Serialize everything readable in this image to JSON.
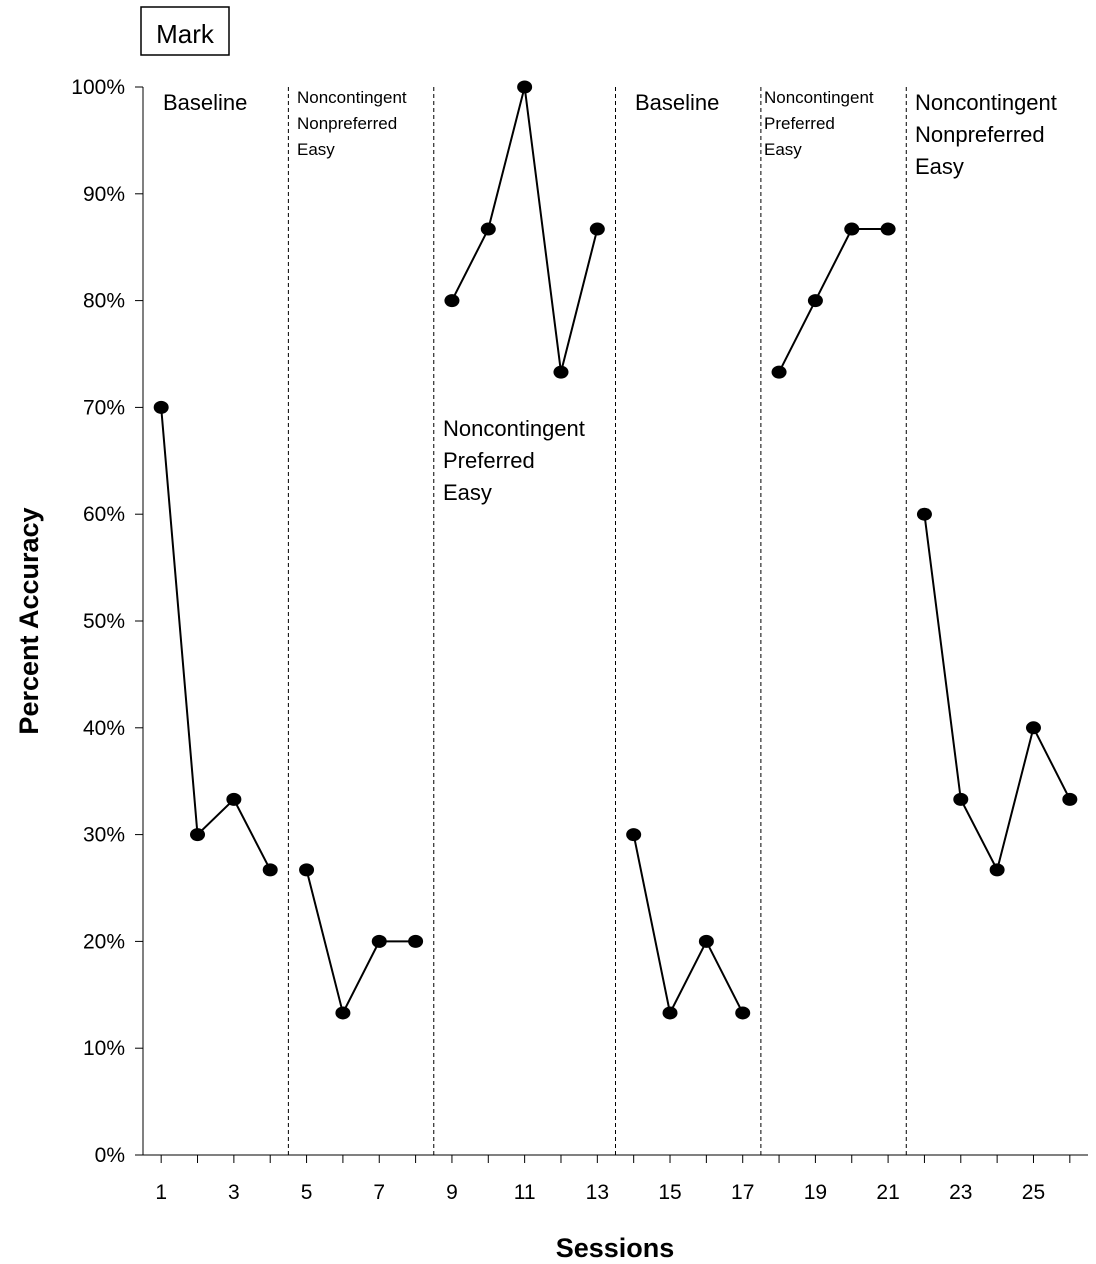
{
  "chart_data": {
    "type": "line",
    "subject": "Mark",
    "xlabel": "Sessions",
    "ylabel": "Percent Accuracy",
    "xlim": [
      0.5,
      26.5
    ],
    "ylim": [
      0,
      100
    ],
    "x_tick_labels": [
      "1",
      "3",
      "5",
      "7",
      "9",
      "11",
      "13",
      "15",
      "17",
      "19",
      "21",
      "23",
      "25"
    ],
    "x_tick_values": [
      1,
      3,
      5,
      7,
      9,
      11,
      13,
      15,
      17,
      19,
      21,
      23,
      25
    ],
    "y_tick_labels": [
      "0%",
      "10%",
      "20%",
      "30%",
      "40%",
      "50%",
      "60%",
      "70%",
      "80%",
      "90%",
      "100%"
    ],
    "y_tick_values": [
      0,
      10,
      20,
      30,
      40,
      50,
      60,
      70,
      80,
      90,
      100
    ],
    "phase_change_lines": [
      4.5,
      8.5,
      13.5,
      17.5,
      21.5
    ],
    "phases": [
      {
        "label": [
          "Baseline"
        ],
        "x": [
          1,
          2,
          3,
          4
        ],
        "y": [
          70,
          30,
          33.3,
          26.7
        ]
      },
      {
        "label": [
          "Noncontingent",
          "Nonpreferred",
          "Easy"
        ],
        "x": [
          5,
          6,
          7,
          8
        ],
        "y": [
          26.7,
          13.3,
          20,
          20
        ]
      },
      {
        "label": [
          "Noncontingent",
          "Preferred",
          "Easy"
        ],
        "x": [
          9,
          10,
          11,
          12,
          13
        ],
        "y": [
          80,
          86.7,
          100,
          73.3,
          86.7
        ]
      },
      {
        "label": [
          "Baseline"
        ],
        "x": [
          14,
          15,
          16,
          17
        ],
        "y": [
          30,
          13.3,
          20,
          13.3
        ]
      },
      {
        "label": [
          "Noncontingent",
          "Preferred",
          "Easy"
        ],
        "x": [
          18,
          19,
          20,
          21
        ],
        "y": [
          73.3,
          80,
          86.7,
          86.7
        ]
      },
      {
        "label": [
          "Noncontingent",
          "Nonpreferred",
          "Easy"
        ],
        "x": [
          22,
          23,
          24,
          25,
          26
        ],
        "y": [
          60,
          33.3,
          26.7,
          40,
          33.3
        ]
      }
    ],
    "grid": false,
    "colors": {
      "line": "#000000",
      "marker": "#000000",
      "phase_line": "#000000"
    }
  }
}
